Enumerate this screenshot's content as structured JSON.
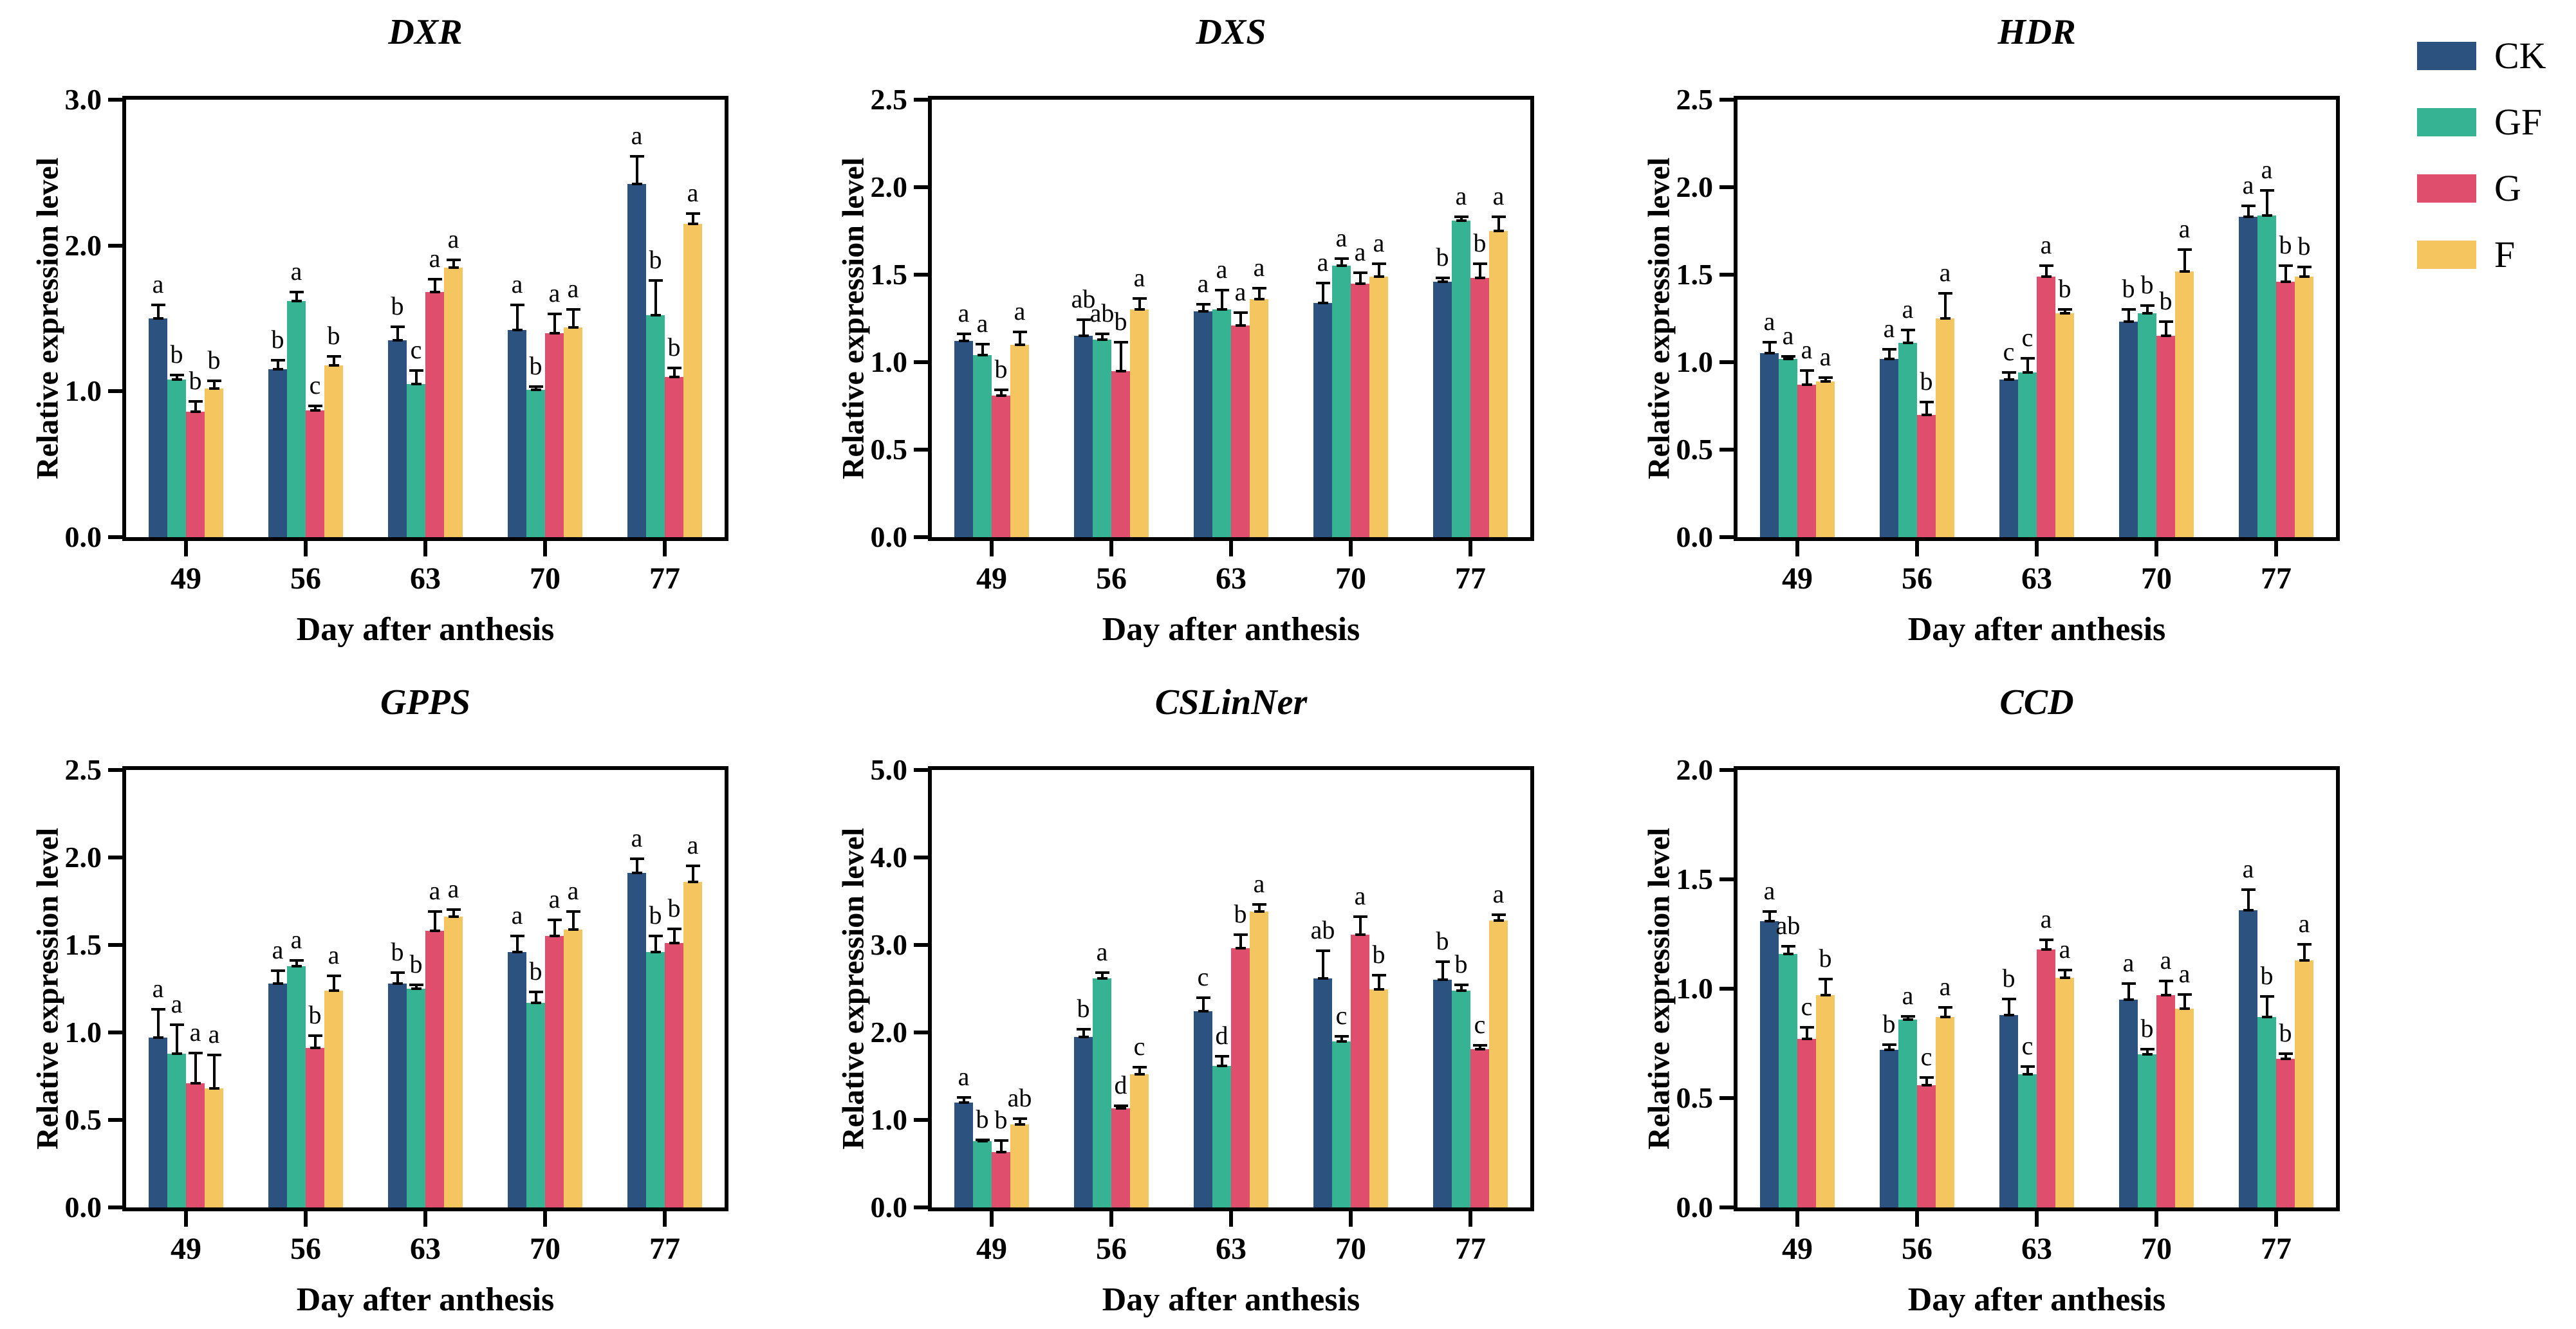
{
  "chart_data": {
    "type": "bar",
    "ylabel": "Relative expression level",
    "xlabel": "Day after anthesis",
    "categories": [
      "49",
      "56",
      "63",
      "70",
      "77"
    ],
    "series_names": [
      "CK",
      "GF",
      "G",
      "F"
    ],
    "colors": {
      "CK": "#2C5380",
      "GF": "#36B393",
      "G": "#E04E6E",
      "F": "#F5C55F"
    },
    "legend": {
      "position": "top-right",
      "entries": [
        {
          "label": "CK",
          "color": "#2C5380"
        },
        {
          "label": "GF",
          "color": "#36B393"
        },
        {
          "label": "G",
          "color": "#E04E6E"
        },
        {
          "label": "F",
          "color": "#F5C55F"
        }
      ]
    },
    "charts": [
      {
        "title": "DXR",
        "ylim": [
          0,
          3.0
        ],
        "yticks": [
          "0.0",
          "1.0",
          "2.0",
          "3.0"
        ],
        "grid": false,
        "series": [
          {
            "name": "CK",
            "values": [
              1.5,
              1.15,
              1.35,
              1.42,
              2.42
            ],
            "errors": [
              0.1,
              0.07,
              0.1,
              0.18,
              0.2
            ],
            "letters": [
              "a",
              "b",
              "b",
              "a",
              "a"
            ]
          },
          {
            "name": "GF",
            "values": [
              1.08,
              1.62,
              1.05,
              1.01,
              1.52
            ],
            "errors": [
              0.04,
              0.07,
              0.1,
              0.03,
              0.25
            ],
            "letters": [
              "b",
              "a",
              "c",
              "b",
              "b"
            ]
          },
          {
            "name": "G",
            "values": [
              0.86,
              0.87,
              1.68,
              1.4,
              1.1
            ],
            "errors": [
              0.08,
              0.04,
              0.1,
              0.14,
              0.07
            ],
            "letters": [
              "b",
              "c",
              "a",
              "a",
              "b"
            ]
          },
          {
            "name": "F",
            "values": [
              1.02,
              1.18,
              1.85,
              1.44,
              2.15
            ],
            "errors": [
              0.06,
              0.07,
              0.06,
              0.13,
              0.08
            ],
            "letters": [
              "b",
              "b",
              "a",
              "a",
              "a"
            ]
          }
        ]
      },
      {
        "title": "DXS",
        "ylim": [
          0,
          2.5
        ],
        "yticks": [
          "0.0",
          "0.5",
          "1.0",
          "1.5",
          "2.0",
          "2.5"
        ],
        "grid": false,
        "series": [
          {
            "name": "CK",
            "values": [
              1.12,
              1.15,
              1.29,
              1.34,
              1.46
            ],
            "errors": [
              0.05,
              0.1,
              0.05,
              0.12,
              0.03
            ],
            "letters": [
              "a",
              "ab",
              "a",
              "a",
              "b"
            ]
          },
          {
            "name": "GF",
            "values": [
              1.04,
              1.13,
              1.3,
              1.55,
              1.81
            ],
            "errors": [
              0.07,
              0.04,
              0.12,
              0.05,
              0.03
            ],
            "letters": [
              "a",
              "ab",
              "a",
              "a",
              "a"
            ]
          },
          {
            "name": "G",
            "values": [
              0.81,
              0.95,
              1.21,
              1.45,
              1.48
            ],
            "errors": [
              0.04,
              0.17,
              0.08,
              0.07,
              0.09
            ],
            "letters": [
              "b",
              "b",
              "a",
              "a",
              "b"
            ]
          },
          {
            "name": "F",
            "values": [
              1.1,
              1.3,
              1.36,
              1.49,
              1.75
            ],
            "errors": [
              0.08,
              0.07,
              0.07,
              0.08,
              0.09
            ],
            "letters": [
              "a",
              "a",
              "a",
              "a",
              "a"
            ]
          }
        ]
      },
      {
        "title": "HDR",
        "ylim": [
          0,
          2.5
        ],
        "yticks": [
          "0.0",
          "0.5",
          "1.0",
          "1.5",
          "2.0",
          "2.5"
        ],
        "grid": false,
        "series": [
          {
            "name": "CK",
            "values": [
              1.05,
              1.02,
              0.9,
              1.23,
              1.83
            ],
            "errors": [
              0.07,
              0.06,
              0.05,
              0.08,
              0.07
            ],
            "letters": [
              "a",
              "a",
              "c",
              "b",
              "a"
            ]
          },
          {
            "name": "GF",
            "values": [
              1.02,
              1.11,
              0.94,
              1.28,
              1.84
            ],
            "errors": [
              0.02,
              0.08,
              0.09,
              0.05,
              0.15
            ],
            "letters": [
              "a",
              "a",
              "c",
              "b",
              "a"
            ]
          },
          {
            "name": "G",
            "values": [
              0.87,
              0.7,
              1.49,
              1.15,
              1.46
            ],
            "errors": [
              0.09,
              0.08,
              0.07,
              0.09,
              0.1
            ],
            "letters": [
              "a",
              "b",
              "a",
              "b",
              "b"
            ]
          },
          {
            "name": "F",
            "values": [
              0.89,
              1.25,
              1.28,
              1.52,
              1.49
            ],
            "errors": [
              0.03,
              0.15,
              0.03,
              0.13,
              0.06
            ],
            "letters": [
              "a",
              "a",
              "b",
              "a",
              "b"
            ]
          }
        ]
      },
      {
        "title": "GPPS",
        "ylim": [
          0,
          2.5
        ],
        "yticks": [
          "0.0",
          "0.5",
          "1.0",
          "1.5",
          "2.0",
          "2.5"
        ],
        "grid": false,
        "series": [
          {
            "name": "CK",
            "values": [
              0.97,
              1.28,
              1.28,
              1.46,
              1.91
            ],
            "errors": [
              0.17,
              0.08,
              0.07,
              0.1,
              0.09
            ],
            "letters": [
              "a",
              "a",
              "b",
              "a",
              "a"
            ]
          },
          {
            "name": "GF",
            "values": [
              0.88,
              1.38,
              1.25,
              1.17,
              1.46
            ],
            "errors": [
              0.17,
              0.04,
              0.03,
              0.07,
              0.1
            ],
            "letters": [
              "a",
              "a",
              "b",
              "b",
              "b"
            ]
          },
          {
            "name": "G",
            "values": [
              0.71,
              0.91,
              1.58,
              1.55,
              1.51
            ],
            "errors": [
              0.18,
              0.08,
              0.12,
              0.1,
              0.09
            ],
            "letters": [
              "a",
              "b",
              "a",
              "a",
              "b"
            ]
          },
          {
            "name": "F",
            "values": [
              0.68,
              1.24,
              1.66,
              1.59,
              1.86
            ],
            "errors": [
              0.2,
              0.09,
              0.05,
              0.11,
              0.1
            ],
            "letters": [
              "a",
              "a",
              "a",
              "a",
              "a"
            ]
          }
        ]
      },
      {
        "title": "CSLinNer",
        "ylim": [
          0,
          5.0
        ],
        "yticks": [
          "0.0",
          "1.0",
          "2.0",
          "3.0",
          "4.0",
          "5.0"
        ],
        "grid": false,
        "series": [
          {
            "name": "CK",
            "values": [
              1.2,
              1.95,
              2.24,
              2.62,
              2.6
            ],
            "errors": [
              0.07,
              0.1,
              0.17,
              0.33,
              0.22
            ],
            "letters": [
              "a",
              "b",
              "c",
              "ab",
              "b"
            ]
          },
          {
            "name": "GF",
            "values": [
              0.76,
              2.62,
              1.62,
              1.9,
              2.48
            ],
            "errors": [
              0.03,
              0.08,
              0.12,
              0.07,
              0.08
            ],
            "letters": [
              "b",
              "a",
              "d",
              "c",
              "b"
            ]
          },
          {
            "name": "G",
            "values": [
              0.63,
              1.13,
              2.96,
              3.12,
              1.81
            ],
            "errors": [
              0.15,
              0.05,
              0.17,
              0.22,
              0.06
            ],
            "letters": [
              "b",
              "d",
              "b",
              "a",
              "c"
            ]
          },
          {
            "name": "F",
            "values": [
              0.95,
              1.52,
              3.38,
              2.49,
              3.28
            ],
            "errors": [
              0.08,
              0.1,
              0.1,
              0.18,
              0.08
            ],
            "letters": [
              "ab",
              "c",
              "a",
              "b",
              "a"
            ]
          }
        ]
      },
      {
        "title": "CCD",
        "ylim": [
          0,
          2.0
        ],
        "yticks": [
          "0.0",
          "0.5",
          "1.0",
          "1.5",
          "2.0"
        ],
        "grid": false,
        "series": [
          {
            "name": "CK",
            "values": [
              1.31,
              0.72,
              0.88,
              0.95,
              1.36
            ],
            "errors": [
              0.05,
              0.03,
              0.08,
              0.08,
              0.1
            ],
            "letters": [
              "a",
              "b",
              "b",
              "a",
              "a"
            ]
          },
          {
            "name": "GF",
            "values": [
              1.16,
              0.86,
              0.61,
              0.7,
              0.87
            ],
            "errors": [
              0.04,
              0.02,
              0.04,
              0.03,
              0.1
            ],
            "letters": [
              "ab",
              "a",
              "c",
              "b",
              "b"
            ]
          },
          {
            "name": "G",
            "values": [
              0.77,
              0.56,
              1.18,
              0.97,
              0.68
            ],
            "errors": [
              0.06,
              0.04,
              0.05,
              0.07,
              0.03
            ],
            "letters": [
              "c",
              "c",
              "a",
              "a",
              "b"
            ]
          },
          {
            "name": "F",
            "values": [
              0.97,
              0.87,
              1.05,
              0.91,
              1.13
            ],
            "errors": [
              0.08,
              0.05,
              0.04,
              0.07,
              0.08
            ],
            "letters": [
              "b",
              "a",
              "a",
              "a",
              "a"
            ]
          }
        ]
      }
    ]
  }
}
